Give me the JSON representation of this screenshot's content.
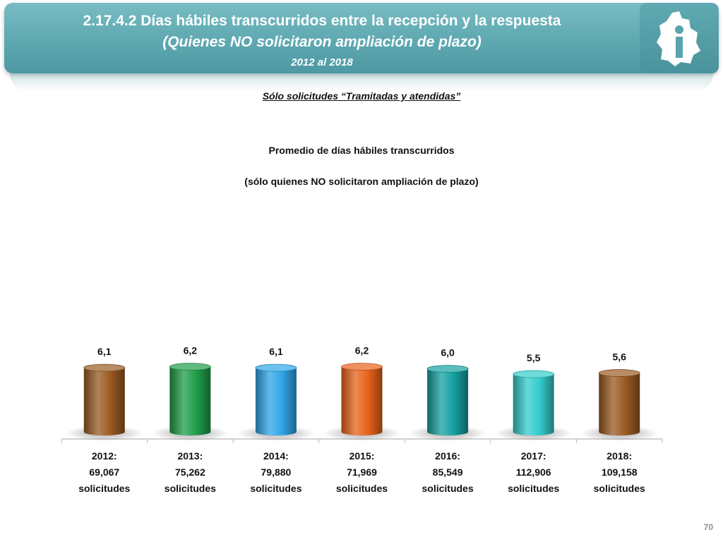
{
  "header": {
    "title": "2.17.4.2 Días hábiles transcurridos entre la recepción y la respuesta",
    "subtitle": "(Quienes NO solicitaron ampliación de plazo)",
    "years": "2012 al 2018",
    "logo_icon": "cdmx-info-logo-icon"
  },
  "note": "Sólo solicitudes “Tramitadas y atendidas”",
  "chart_data": {
    "type": "bar",
    "title": "Promedio de días hábiles transcurridos",
    "subtitle": "(sólo quienes NO solicitaron ampliación de plazo)",
    "categories": [
      [
        "2012:",
        "69,067",
        "solicitudes"
      ],
      [
        "2013:",
        "75,262",
        "solicitudes"
      ],
      [
        "2014:",
        "79,880",
        "solicitudes"
      ],
      [
        "2015:",
        "71,969",
        "solicitudes"
      ],
      [
        "2016:",
        "85,549",
        "solicitudes"
      ],
      [
        "2017:",
        "112,906",
        "solicitudes"
      ],
      [
        "2018:",
        "109,158",
        "solicitudes"
      ]
    ],
    "values": [
      6.1,
      6.2,
      6.1,
      6.2,
      6.0,
      5.5,
      5.6
    ],
    "value_labels": [
      "6,1",
      "6,2",
      "6,1",
      "6,2",
      "6,0",
      "5,5",
      "5,6"
    ],
    "colors": [
      "#9a5a22",
      "#1f9d49",
      "#2fa6e6",
      "#e8621a",
      "#14a0a0",
      "#33cccc",
      "#9a5a22"
    ],
    "legend": "none",
    "grid": false
  },
  "page_number": "70"
}
